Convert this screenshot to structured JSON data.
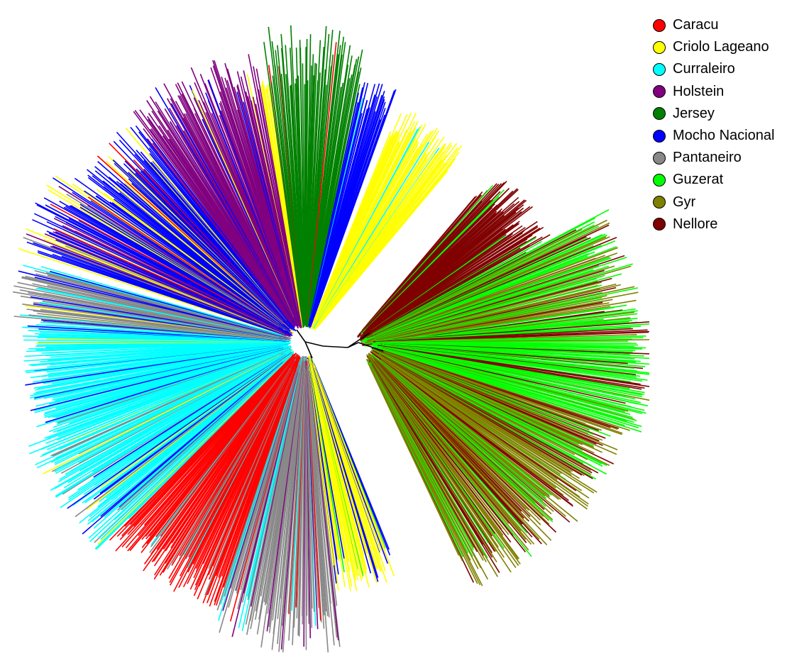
{
  "figure": {
    "type": "unrooted-phylogenetic-tree",
    "legend": [
      {
        "name": "Caracu",
        "color": "#ff0000"
      },
      {
        "name": "Criolo Lageano",
        "color": "#ffff00"
      },
      {
        "name": "Curraleiro",
        "color": "#00ffff"
      },
      {
        "name": "Holstein",
        "color": "#800080"
      },
      {
        "name": "Jersey",
        "color": "#008000"
      },
      {
        "name": "Mocho Nacional",
        "color": "#0000ff"
      },
      {
        "name": "Pantaneiro",
        "color": "#888888"
      },
      {
        "name": "Guzerat",
        "color": "#00ff00"
      },
      {
        "name": "Gyr",
        "color": "#808000"
      },
      {
        "name": "Nellore",
        "color": "#800000"
      }
    ],
    "internal_branch_color": "#000000"
  }
}
